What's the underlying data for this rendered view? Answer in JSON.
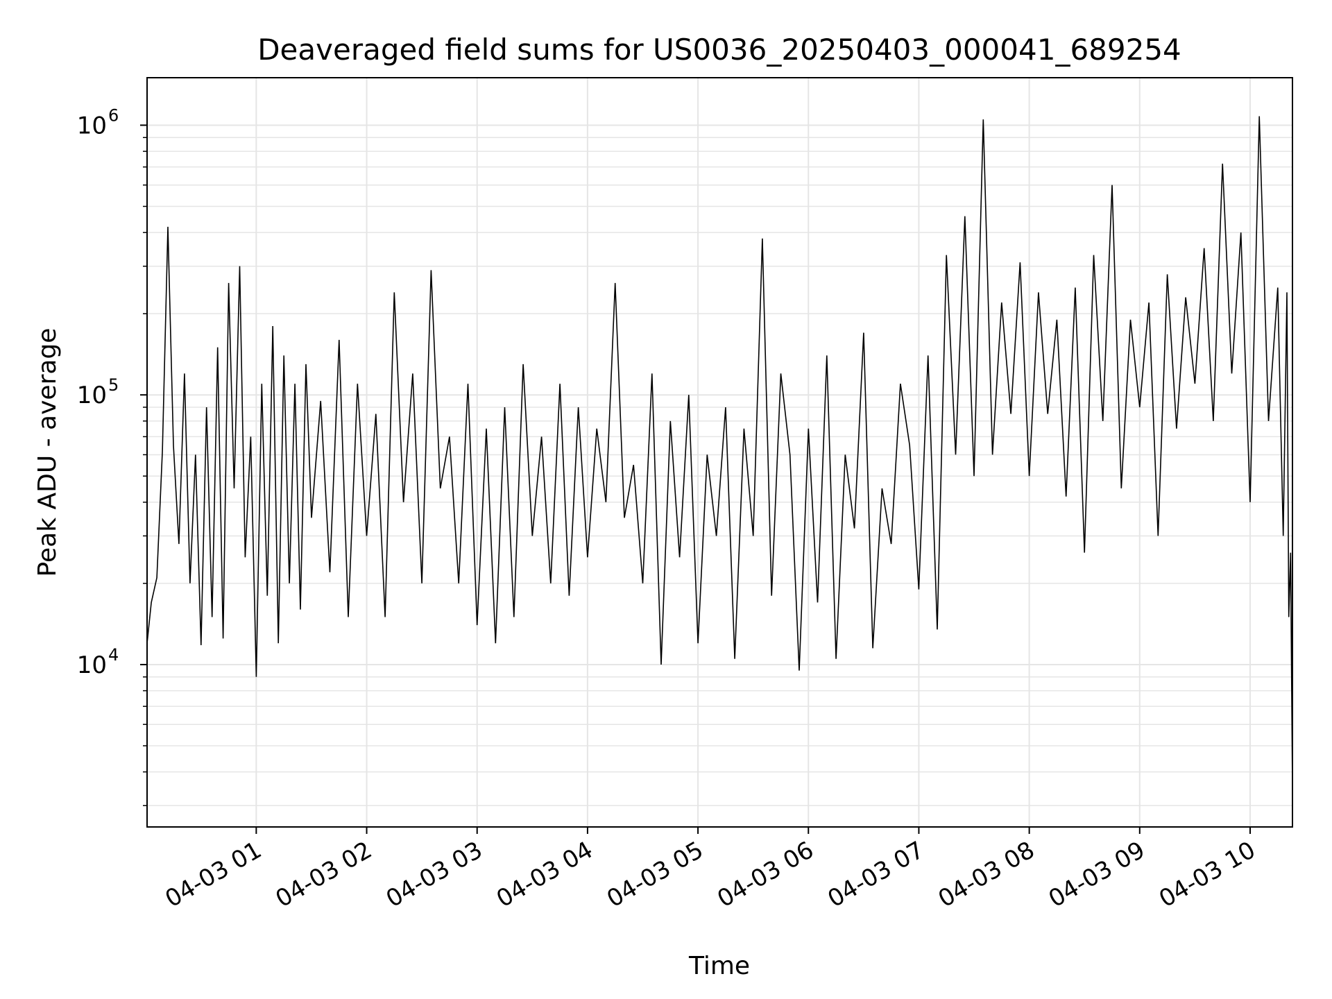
{
  "chart_data": {
    "type": "line",
    "title": "Deaveraged field sums for US0036_20250403_000041_689254",
    "xlabel": "Time",
    "ylabel": "Peak ADU - average",
    "yscale": "log",
    "ylim": [
      2500,
      1500000
    ],
    "xlim": [
      "2025-04-03 00:00:41",
      "2025-04-03 10:23:00"
    ],
    "grid": true,
    "line_color": "#000000",
    "x_ticks": [
      {
        "value": "2025-04-03 01:00",
        "label": "04-03 01"
      },
      {
        "value": "2025-04-03 02:00",
        "label": "04-03 02"
      },
      {
        "value": "2025-04-03 03:00",
        "label": "04-03 03"
      },
      {
        "value": "2025-04-03 04:00",
        "label": "04-03 04"
      },
      {
        "value": "2025-04-03 05:00",
        "label": "04-03 05"
      },
      {
        "value": "2025-04-03 06:00",
        "label": "04-03 06"
      },
      {
        "value": "2025-04-03 07:00",
        "label": "04-03 07"
      },
      {
        "value": "2025-04-03 08:00",
        "label": "04-03 08"
      },
      {
        "value": "2025-04-03 09:00",
        "label": "04-03 09"
      },
      {
        "value": "2025-04-03 10:00",
        "label": "04-03 10"
      }
    ],
    "y_ticks": [
      {
        "value": 10000,
        "base": "10",
        "exp": "4"
      },
      {
        "value": 100000,
        "base": "10",
        "exp": "5"
      },
      {
        "value": 1000000,
        "base": "10",
        "exp": "6"
      }
    ],
    "series": [
      {
        "x": [
          "2025-04-03 00:00:41",
          "2025-04-03 00:03",
          "2025-04-03 00:06",
          "2025-04-03 00:09",
          "2025-04-03 00:12",
          "2025-04-03 00:15",
          "2025-04-03 00:18",
          "2025-04-03 00:21",
          "2025-04-03 00:24",
          "2025-04-03 00:27",
          "2025-04-03 00:30",
          "2025-04-03 00:33",
          "2025-04-03 00:36",
          "2025-04-03 00:39",
          "2025-04-03 00:42",
          "2025-04-03 00:45",
          "2025-04-03 00:48",
          "2025-04-03 00:51",
          "2025-04-03 00:54",
          "2025-04-03 00:57",
          "2025-04-03 01:00",
          "2025-04-03 01:03",
          "2025-04-03 01:06",
          "2025-04-03 01:09",
          "2025-04-03 01:12",
          "2025-04-03 01:15",
          "2025-04-03 01:18",
          "2025-04-03 01:21",
          "2025-04-03 01:24",
          "2025-04-03 01:27",
          "2025-04-03 01:30",
          "2025-04-03 01:35",
          "2025-04-03 01:40",
          "2025-04-03 01:45",
          "2025-04-03 01:50",
          "2025-04-03 01:55",
          "2025-04-03 02:00",
          "2025-04-03 02:05",
          "2025-04-03 02:10",
          "2025-04-03 02:15",
          "2025-04-03 02:20",
          "2025-04-03 02:25",
          "2025-04-03 02:30",
          "2025-04-03 02:35",
          "2025-04-03 02:40",
          "2025-04-03 02:45",
          "2025-04-03 02:50",
          "2025-04-03 02:55",
          "2025-04-03 03:00",
          "2025-04-03 03:05",
          "2025-04-03 03:10",
          "2025-04-03 03:15",
          "2025-04-03 03:20",
          "2025-04-03 03:25",
          "2025-04-03 03:30",
          "2025-04-03 03:35",
          "2025-04-03 03:40",
          "2025-04-03 03:45",
          "2025-04-03 03:50",
          "2025-04-03 03:55",
          "2025-04-03 04:00",
          "2025-04-03 04:05",
          "2025-04-03 04:10",
          "2025-04-03 04:15",
          "2025-04-03 04:20",
          "2025-04-03 04:25",
          "2025-04-03 04:30",
          "2025-04-03 04:35",
          "2025-04-03 04:40",
          "2025-04-03 04:45",
          "2025-04-03 04:50",
          "2025-04-03 04:55",
          "2025-04-03 05:00",
          "2025-04-03 05:05",
          "2025-04-03 05:10",
          "2025-04-03 05:15",
          "2025-04-03 05:20",
          "2025-04-03 05:25",
          "2025-04-03 05:30",
          "2025-04-03 05:35",
          "2025-04-03 05:40",
          "2025-04-03 05:45",
          "2025-04-03 05:50",
          "2025-04-03 05:55",
          "2025-04-03 06:00",
          "2025-04-03 06:05",
          "2025-04-03 06:10",
          "2025-04-03 06:15",
          "2025-04-03 06:20",
          "2025-04-03 06:25",
          "2025-04-03 06:30",
          "2025-04-03 06:35",
          "2025-04-03 06:40",
          "2025-04-03 06:45",
          "2025-04-03 06:50",
          "2025-04-03 06:55",
          "2025-04-03 07:00",
          "2025-04-03 07:05",
          "2025-04-03 07:10",
          "2025-04-03 07:15",
          "2025-04-03 07:20",
          "2025-04-03 07:25",
          "2025-04-03 07:30",
          "2025-04-03 07:35",
          "2025-04-03 07:40",
          "2025-04-03 07:45",
          "2025-04-03 07:50",
          "2025-04-03 07:55",
          "2025-04-03 08:00",
          "2025-04-03 08:05",
          "2025-04-03 08:10",
          "2025-04-03 08:15",
          "2025-04-03 08:20",
          "2025-04-03 08:25",
          "2025-04-03 08:30",
          "2025-04-03 08:35",
          "2025-04-03 08:40",
          "2025-04-03 08:45",
          "2025-04-03 08:50",
          "2025-04-03 08:55",
          "2025-04-03 09:00",
          "2025-04-03 09:05",
          "2025-04-03 09:10",
          "2025-04-03 09:15",
          "2025-04-03 09:20",
          "2025-04-03 09:25",
          "2025-04-03 09:30",
          "2025-04-03 09:35",
          "2025-04-03 09:40",
          "2025-04-03 09:45",
          "2025-04-03 09:50",
          "2025-04-03 09:55",
          "2025-04-03 10:00",
          "2025-04-03 10:05",
          "2025-04-03 10:10",
          "2025-04-03 10:15",
          "2025-04-03 10:18",
          "2025-04-03 10:20",
          "2025-04-03 10:21",
          "2025-04-03 10:22",
          "2025-04-03 10:23"
        ],
        "y": [
          12000,
          17000,
          21000,
          62000,
          420000,
          65000,
          28000,
          120000,
          20000,
          60000,
          11800,
          90000,
          15000,
          150000,
          12500,
          260000,
          45000,
          300000,
          25000,
          70000,
          9000,
          110000,
          18000,
          180000,
          12000,
          140000,
          20000,
          110000,
          16000,
          130000,
          35000,
          95000,
          22000,
          160000,
          15000,
          110000,
          30000,
          85000,
          15000,
          240000,
          40000,
          120000,
          20000,
          290000,
          45000,
          70000,
          20000,
          110000,
          14000,
          75000,
          12000,
          90000,
          15000,
          130000,
          30000,
          70000,
          20000,
          110000,
          18000,
          90000,
          25000,
          75000,
          40000,
          260000,
          35000,
          55000,
          20000,
          120000,
          10000,
          80000,
          25000,
          100000,
          12000,
          60000,
          30000,
          90000,
          10500,
          75000,
          30000,
          380000,
          18000,
          120000,
          60000,
          9500,
          75000,
          17000,
          140000,
          10500,
          60000,
          32000,
          170000,
          11500,
          45000,
          28000,
          110000,
          65000,
          19000,
          140000,
          13500,
          330000,
          60000,
          460000,
          50000,
          1050000,
          60000,
          220000,
          85000,
          310000,
          50000,
          240000,
          85000,
          190000,
          42000,
          250000,
          26000,
          330000,
          80000,
          600000,
          45000,
          190000,
          90000,
          220000,
          30000,
          280000,
          75000,
          230000,
          110000,
          350000,
          80000,
          720000,
          120000,
          400000,
          40000,
          1080000,
          80000,
          250000,
          30000,
          240000,
          15000,
          26000,
          3500
        ]
      }
    ]
  }
}
